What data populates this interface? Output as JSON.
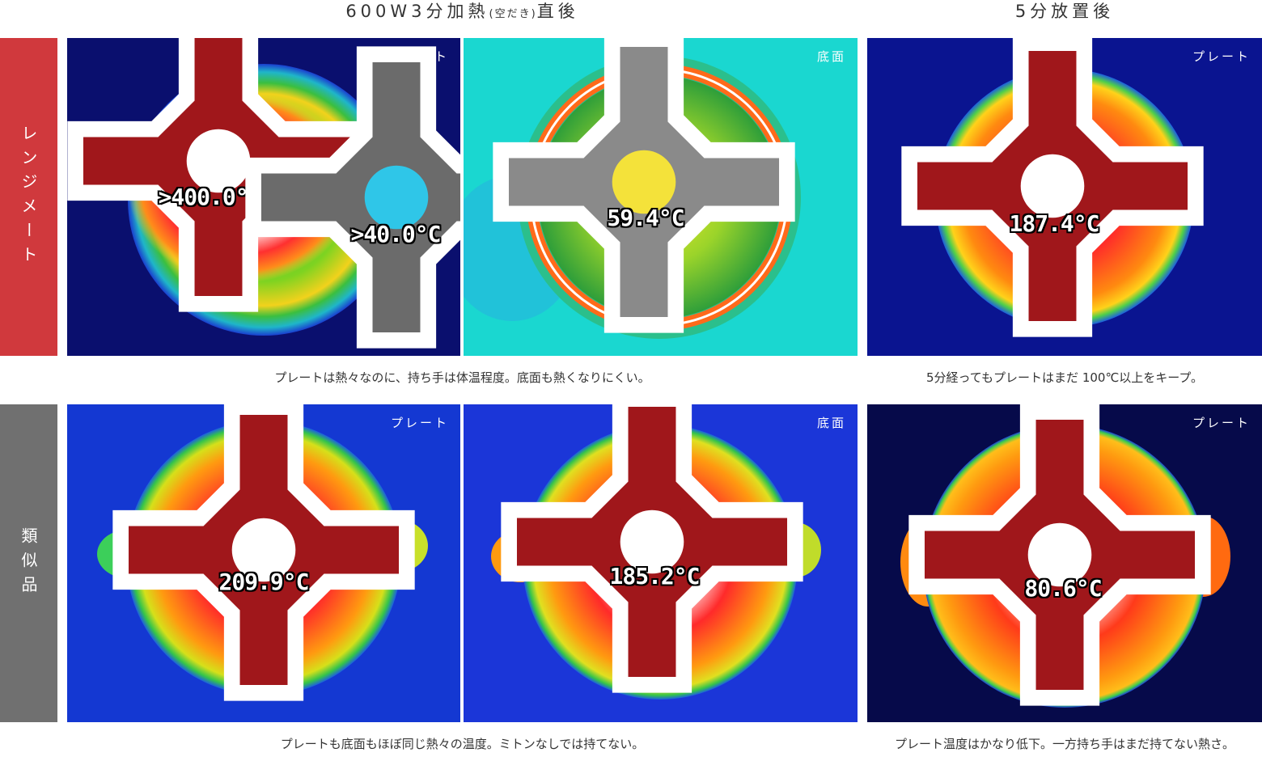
{
  "headings": {
    "heat_prefix": "600W3分加熱",
    "heat_note": "(空だき)",
    "heat_suffix": "直後",
    "rest": "5分放置後"
  },
  "rows": {
    "range_mate": "レンジメート",
    "similar": "類似品"
  },
  "colors": {
    "range_mate_band": "#d0393d",
    "similar_band": "#707070"
  },
  "panels": {
    "r1_plate": {
      "tag": "プレート",
      "reading1": ">400.0°C",
      "reading2": ">40.0°C"
    },
    "r1_bottom": {
      "tag": "底面",
      "reading1": "59.4°C"
    },
    "r1_rest": {
      "tag": "プレート",
      "reading1": "187.4°C"
    },
    "r2_plate": {
      "tag": "プレート",
      "reading1": "209.9°C"
    },
    "r2_bottom": {
      "tag": "底面",
      "reading1": "185.2°C"
    },
    "r2_rest": {
      "tag": "プレート",
      "reading1": "80.6°C"
    }
  },
  "captions": {
    "r1_left": "プレートは熱々なのに、持ち手は体温程度。底面も熱くなりにくい。",
    "r1_right": "5分経ってもプレートはまだ 100℃以上をキープ。",
    "r2_left": "プレートも底面もほぼ同じ熱々の温度。ミトンなしでは持てない。",
    "r2_right": "プレート温度はかなり低下。一方持ち手はまだ持てない熱さ。"
  }
}
